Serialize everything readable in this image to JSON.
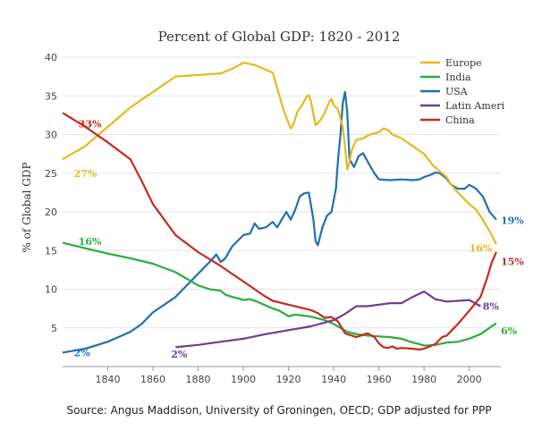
{
  "chart_data": {
    "type": "line",
    "title": "Percent of Global GDP: 1820 - 2012",
    "xlabel": "",
    "ylabel": "% of Global GDP",
    "xlim": [
      1820,
      2014
    ],
    "ylim": [
      0,
      40
    ],
    "x_ticks": [
      1840,
      1860,
      1880,
      1900,
      1920,
      1940,
      1960,
      1980,
      2000
    ],
    "y_ticks": [
      5,
      10,
      15,
      20,
      25,
      30,
      35,
      40
    ],
    "grid": "horizontal",
    "legend_position": "top-right",
    "source": "Source: Angus Maddison, University of Groningen, OECD; GDP adjusted for PPP",
    "series": [
      {
        "name": "Europe",
        "color": "#e6b81e",
        "points": [
          [
            1820,
            26.8
          ],
          [
            1830,
            28.5
          ],
          [
            1840,
            31.0
          ],
          [
            1850,
            33.5
          ],
          [
            1860,
            35.5
          ],
          [
            1870,
            37.5
          ],
          [
            1880,
            37.7
          ],
          [
            1890,
            37.9
          ],
          [
            1895,
            38.5
          ],
          [
            1900,
            39.3
          ],
          [
            1905,
            39.0
          ],
          [
            1913,
            38.0
          ],
          [
            1916,
            35.0
          ],
          [
            1918,
            33.0
          ],
          [
            1920,
            31.5
          ],
          [
            1921,
            30.8
          ],
          [
            1922,
            31.2
          ],
          [
            1924,
            33.0
          ],
          [
            1926,
            33.8
          ],
          [
            1928,
            34.9
          ],
          [
            1929,
            35.1
          ],
          [
            1930,
            34.2
          ],
          [
            1932,
            31.2
          ],
          [
            1934,
            31.8
          ],
          [
            1936,
            32.8
          ],
          [
            1938,
            34.2
          ],
          [
            1939,
            34.6
          ],
          [
            1940,
            33.8
          ],
          [
            1942,
            33.2
          ],
          [
            1944,
            31.0
          ],
          [
            1945,
            28.5
          ],
          [
            1946,
            25.5
          ],
          [
            1947,
            26.5
          ],
          [
            1948,
            28.0
          ],
          [
            1950,
            29.3
          ],
          [
            1953,
            29.5
          ],
          [
            1956,
            30.0
          ],
          [
            1960,
            30.3
          ],
          [
            1962,
            30.8
          ],
          [
            1964,
            30.6
          ],
          [
            1966,
            30.0
          ],
          [
            1970,
            29.5
          ],
          [
            1975,
            28.5
          ],
          [
            1980,
            27.5
          ],
          [
            1984,
            26.0
          ],
          [
            1988,
            25.0
          ],
          [
            1990,
            24.5
          ],
          [
            1992,
            23.5
          ],
          [
            1995,
            22.5
          ],
          [
            2000,
            21.0
          ],
          [
            2003,
            20.3
          ],
          [
            2006,
            19.0
          ],
          [
            2010,
            17.0
          ],
          [
            2012,
            15.8
          ]
        ]
      },
      {
        "name": "India",
        "color": "#27ae3c",
        "points": [
          [
            1820,
            16.0
          ],
          [
            1830,
            15.3
          ],
          [
            1840,
            14.6
          ],
          [
            1850,
            14.0
          ],
          [
            1860,
            13.3
          ],
          [
            1870,
            12.2
          ],
          [
            1880,
            10.5
          ],
          [
            1885,
            10.0
          ],
          [
            1890,
            9.8
          ],
          [
            1892,
            9.3
          ],
          [
            1895,
            9.0
          ],
          [
            1898,
            8.8
          ],
          [
            1900,
            8.6
          ],
          [
            1903,
            8.7
          ],
          [
            1906,
            8.4
          ],
          [
            1910,
            7.9
          ],
          [
            1913,
            7.5
          ],
          [
            1916,
            7.2
          ],
          [
            1920,
            6.5
          ],
          [
            1923,
            6.7
          ],
          [
            1926,
            6.6
          ],
          [
            1929,
            6.5
          ],
          [
            1932,
            6.3
          ],
          [
            1936,
            6.0
          ],
          [
            1940,
            5.5
          ],
          [
            1943,
            5.0
          ],
          [
            1946,
            4.5
          ],
          [
            1950,
            4.2
          ],
          [
            1955,
            4.0
          ],
          [
            1960,
            3.9
          ],
          [
            1965,
            3.8
          ],
          [
            1970,
            3.6
          ],
          [
            1975,
            3.1
          ],
          [
            1978,
            2.9
          ],
          [
            1980,
            2.7
          ],
          [
            1985,
            2.8
          ],
          [
            1990,
            3.1
          ],
          [
            1995,
            3.2
          ],
          [
            2000,
            3.6
          ],
          [
            2005,
            4.2
          ],
          [
            2010,
            5.2
          ],
          [
            2012,
            5.6
          ]
        ]
      },
      {
        "name": "USA",
        "color": "#1f6fb4",
        "points": [
          [
            1820,
            1.8
          ],
          [
            1830,
            2.3
          ],
          [
            1840,
            3.2
          ],
          [
            1850,
            4.5
          ],
          [
            1855,
            5.5
          ],
          [
            1860,
            7.0
          ],
          [
            1865,
            8.0
          ],
          [
            1870,
            9.0
          ],
          [
            1875,
            10.5
          ],
          [
            1880,
            12.0
          ],
          [
            1885,
            13.5
          ],
          [
            1888,
            14.5
          ],
          [
            1890,
            13.5
          ],
          [
            1892,
            14.0
          ],
          [
            1895,
            15.5
          ],
          [
            1900,
            17.0
          ],
          [
            1903,
            17.2
          ],
          [
            1905,
            18.5
          ],
          [
            1907,
            17.8
          ],
          [
            1910,
            18.0
          ],
          [
            1913,
            18.7
          ],
          [
            1915,
            18.0
          ],
          [
            1917,
            19.0
          ],
          [
            1919,
            20.0
          ],
          [
            1921,
            19.0
          ],
          [
            1923,
            20.3
          ],
          [
            1925,
            22.0
          ],
          [
            1927,
            22.4
          ],
          [
            1929,
            22.5
          ],
          [
            1931,
            19.0
          ],
          [
            1932,
            16.2
          ],
          [
            1933,
            15.7
          ],
          [
            1935,
            18.0
          ],
          [
            1937,
            19.5
          ],
          [
            1939,
            20.0
          ],
          [
            1941,
            23.0
          ],
          [
            1942,
            27.0
          ],
          [
            1943,
            30.0
          ],
          [
            1944,
            34.0
          ],
          [
            1945,
            35.5
          ],
          [
            1946,
            33.0
          ],
          [
            1947,
            26.8
          ],
          [
            1948,
            26.3
          ],
          [
            1949,
            25.8
          ],
          [
            1950,
            26.5
          ],
          [
            1951,
            27.2
          ],
          [
            1953,
            27.6
          ],
          [
            1956,
            26.0
          ],
          [
            1958,
            25.0
          ],
          [
            1960,
            24.2
          ],
          [
            1965,
            24.1
          ],
          [
            1970,
            24.2
          ],
          [
            1975,
            24.1
          ],
          [
            1978,
            24.2
          ],
          [
            1980,
            24.5
          ],
          [
            1983,
            24.8
          ],
          [
            1985,
            25.1
          ],
          [
            1987,
            25.0
          ],
          [
            1990,
            24.3
          ],
          [
            1992,
            23.5
          ],
          [
            1995,
            23.0
          ],
          [
            1998,
            23.0
          ],
          [
            2000,
            23.5
          ],
          [
            2003,
            23.0
          ],
          [
            2006,
            22.0
          ],
          [
            2009,
            20.0
          ],
          [
            2012,
            19.0
          ]
        ]
      },
      {
        "name": "Latin Ameri",
        "color": "#6a3d9a",
        "points": [
          [
            1870,
            2.5
          ],
          [
            1880,
            2.8
          ],
          [
            1890,
            3.2
          ],
          [
            1900,
            3.6
          ],
          [
            1910,
            4.2
          ],
          [
            1920,
            4.7
          ],
          [
            1930,
            5.2
          ],
          [
            1940,
            6.0
          ],
          [
            1945,
            6.8
          ],
          [
            1950,
            7.8
          ],
          [
            1955,
            7.8
          ],
          [
            1960,
            8.0
          ],
          [
            1965,
            8.2
          ],
          [
            1970,
            8.2
          ],
          [
            1975,
            9.0
          ],
          [
            1980,
            9.7
          ],
          [
            1985,
            8.7
          ],
          [
            1990,
            8.4
          ],
          [
            1995,
            8.5
          ],
          [
            2000,
            8.6
          ],
          [
            2005,
            7.8
          ]
        ]
      },
      {
        "name": "China",
        "color": "#c8281e",
        "points": [
          [
            1820,
            32.8
          ],
          [
            1830,
            31.0
          ],
          [
            1840,
            29.0
          ],
          [
            1850,
            26.8
          ],
          [
            1855,
            24.0
          ],
          [
            1860,
            21.0
          ],
          [
            1870,
            17.0
          ],
          [
            1880,
            14.8
          ],
          [
            1890,
            13.0
          ],
          [
            1900,
            11.0
          ],
          [
            1910,
            9.0
          ],
          [
            1913,
            8.5
          ],
          [
            1920,
            8.0
          ],
          [
            1930,
            7.3
          ],
          [
            1933,
            6.9
          ],
          [
            1936,
            6.3
          ],
          [
            1939,
            6.4
          ],
          [
            1942,
            5.8
          ],
          [
            1945,
            4.3
          ],
          [
            1950,
            3.8
          ],
          [
            1955,
            4.3
          ],
          [
            1958,
            3.8
          ],
          [
            1960,
            3.0
          ],
          [
            1962,
            2.5
          ],
          [
            1964,
            2.4
          ],
          [
            1966,
            2.6
          ],
          [
            1968,
            2.3
          ],
          [
            1970,
            2.4
          ],
          [
            1975,
            2.3
          ],
          [
            1978,
            2.2
          ],
          [
            1980,
            2.3
          ],
          [
            1985,
            2.9
          ],
          [
            1988,
            3.8
          ],
          [
            1990,
            4.0
          ],
          [
            1995,
            5.5
          ],
          [
            2000,
            7.2
          ],
          [
            2005,
            9.0
          ],
          [
            2008,
            11.5
          ],
          [
            2010,
            13.5
          ],
          [
            2012,
            14.8
          ]
        ]
      }
    ],
    "annotations": [
      {
        "text": "33%",
        "series": "China",
        "x": 1827,
        "y": 31.4
      },
      {
        "text": "27%",
        "series": "Europe",
        "x": 1825,
        "y": 25.0
      },
      {
        "text": "16%",
        "series": "India",
        "x": 1827,
        "y": 16.2
      },
      {
        "text": "2%",
        "series": "USA",
        "x": 1825,
        "y": 1.8
      },
      {
        "text": "2%",
        "series": "Latin Ameri",
        "x": 1868,
        "y": 1.6
      },
      {
        "text": "19%",
        "series": "USA",
        "x": 2014,
        "y": 18.9
      },
      {
        "text": "16%",
        "series": "Europe",
        "x": 2000,
        "y": 15.3
      },
      {
        "text": "15%",
        "series": "China",
        "x": 2014,
        "y": 13.6
      },
      {
        "text": "8%",
        "series": "Latin Ameri",
        "x": 2006,
        "y": 7.8
      },
      {
        "text": "6%",
        "series": "India",
        "x": 2014,
        "y": 4.6
      }
    ]
  }
}
